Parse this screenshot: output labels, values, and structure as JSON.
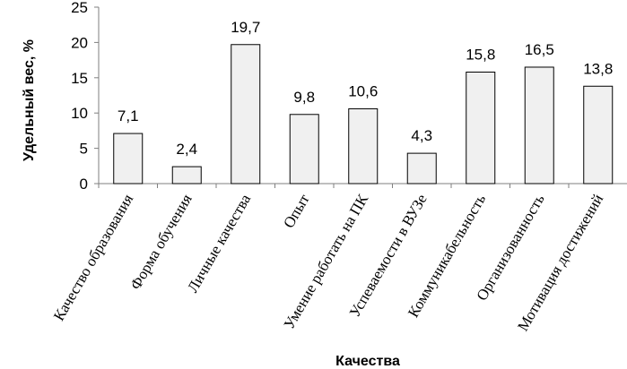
{
  "chart_data": {
    "type": "bar",
    "categories": [
      "Качество образования",
      "Форма обучения",
      "Личные качества",
      "Опыт",
      "Умение работать на ПК",
      "Успеваемости в ВУЗе",
      "Коммуникабельность",
      "Организованность",
      "Мотивация достижений"
    ],
    "values": [
      7.1,
      2.4,
      19.7,
      9.8,
      10.6,
      4.3,
      15.8,
      16.5,
      13.8
    ],
    "data_labels": [
      "7,1",
      "2,4",
      "19,7",
      "9,8",
      "10,6",
      "4,3",
      "15,8",
      "16,5",
      "13,8"
    ],
    "xlabel": "Качества",
    "ylabel": "Удельный вес, %",
    "ylim": [
      0,
      25
    ],
    "yticks": [
      0,
      5,
      10,
      15,
      20,
      25
    ],
    "grid": false,
    "legend": "none",
    "colors": {
      "bar_fill": "#f0f0f0",
      "bar_stroke": "#000000",
      "axis": "#7f7f7f"
    }
  }
}
